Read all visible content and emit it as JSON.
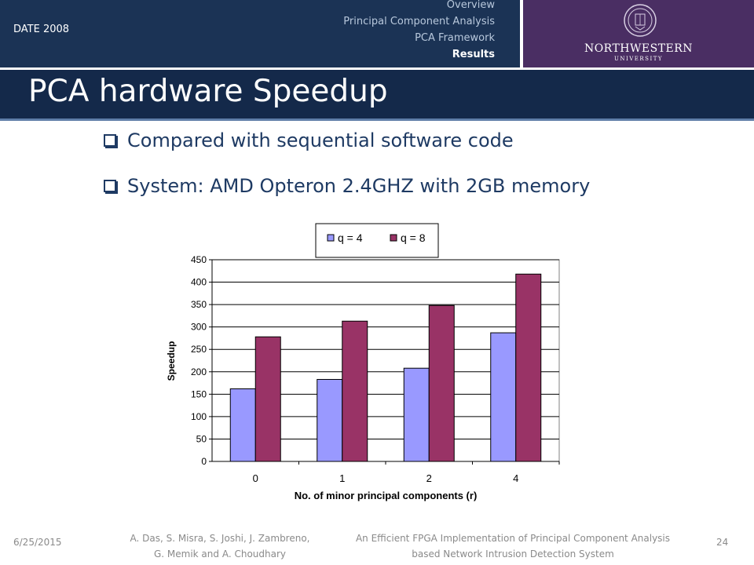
{
  "header": {
    "conference": "DATE 2008",
    "nav": [
      "Overview",
      "Principal Component Analysis",
      "PCA Framework",
      "Results"
    ],
    "active_nav": "Results",
    "university_name": "NORTHWESTERN",
    "university_sub": "UNIVERSITY",
    "left_color": "#1b3355",
    "right_color": "#4a2e63"
  },
  "slide": {
    "title": "PCA hardware Speedup",
    "bullets": [
      "Compared with sequential software code",
      "System: AMD Opteron 2.4GHZ with 2GB memory"
    ]
  },
  "chart_data": {
    "type": "bar",
    "title": "",
    "xlabel": "No. of minor principal components (r)",
    "ylabel": "Speedup",
    "categories": [
      "0",
      "1",
      "2",
      "4"
    ],
    "series": [
      {
        "name": "q = 4",
        "values": [
          162,
          183,
          208,
          287
        ],
        "color": "#9999ff"
      },
      {
        "name": "q = 8",
        "values": [
          278,
          313,
          348,
          418
        ],
        "color": "#993366"
      }
    ],
    "ylim": [
      0,
      450
    ],
    "yticks": [
      0,
      50,
      100,
      150,
      200,
      250,
      300,
      350,
      400,
      450
    ],
    "grid": true,
    "legend_position": "top"
  },
  "footer": {
    "date": "6/25/2015",
    "authors_line1": "A. Das, S. Misra, S. Joshi, J. Zambreno,",
    "authors_line2": "G. Memik and A. Choudhary",
    "paper_line1": "An Efficient FPGA Implementation of Principal Component Analysis",
    "paper_line2": "based Network Intrusion Detection System",
    "page": "24"
  }
}
